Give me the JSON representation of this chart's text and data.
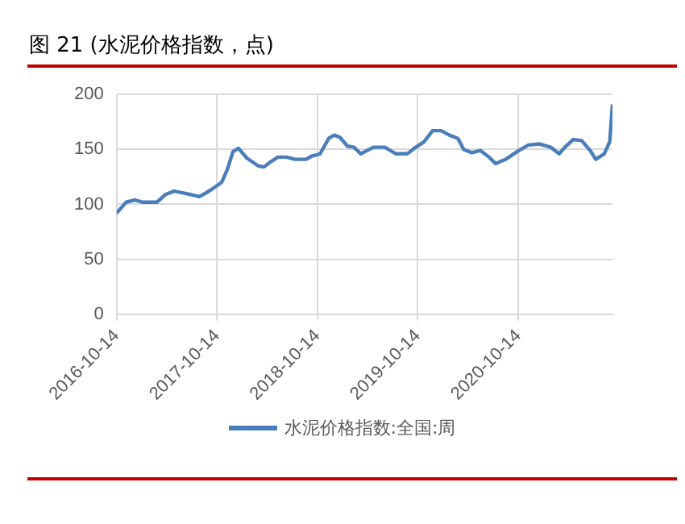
{
  "chart_data": {
    "type": "line",
    "title": "图 21 (水泥价格指数，点)",
    "legend": "bottom",
    "grid": true,
    "marker": "none",
    "line_style": "solid",
    "xlim": [
      "2016-10-14",
      "2021-09-21"
    ],
    "xticks": [
      "2016-10-14",
      "2017-10-14",
      "2018-10-14",
      "2019-10-14",
      "2020-10-14"
    ],
    "ylim": [
      0,
      200
    ],
    "yticks": [
      0,
      50,
      100,
      150,
      200
    ],
    "series": [
      {
        "name": "水泥价格指数:全国:周",
        "color": "#4a7ebb",
        "x": [
          "2016-10-14",
          "2016-11-18",
          "2016-12-19",
          "2017-01-18",
          "2017-03-10",
          "2017-04-10",
          "2017-05-11",
          "2017-06-21",
          "2017-08-11",
          "2017-09-21",
          "2017-10-31",
          "2017-11-21",
          "2017-12-11",
          "2017-12-31",
          "2018-01-31",
          "2018-03-13",
          "2018-04-03",
          "2018-04-23",
          "2018-05-24",
          "2018-06-24",
          "2018-07-24",
          "2018-09-03",
          "2018-09-24",
          "2018-10-24",
          "2018-11-24",
          "2018-12-14",
          "2019-01-04",
          "2019-01-31",
          "2019-02-24",
          "2019-03-21",
          "2019-05-06",
          "2019-06-16",
          "2019-07-27",
          "2019-09-06",
          "2019-10-07",
          "2019-11-06",
          "2019-12-07",
          "2020-01-07",
          "2020-02-06",
          "2020-03-08",
          "2020-03-29",
          "2020-04-28",
          "2020-05-29",
          "2020-06-29",
          "2020-07-23",
          "2020-08-29",
          "2020-10-09",
          "2020-11-19",
          "2020-12-30",
          "2021-02-08",
          "2021-03-11",
          "2021-04-01",
          "2021-05-01",
          "2021-06-01",
          "2021-07-02",
          "2021-07-22",
          "2021-08-22",
          "2021-09-11",
          "2021-09-21"
        ],
        "values": [
          92,
          102,
          104,
          102,
          102,
          109,
          112,
          110,
          107,
          113,
          120,
          132,
          148,
          151,
          142,
          135,
          134,
          138,
          143,
          143,
          141,
          141,
          144,
          146,
          160,
          163,
          161,
          153,
          152,
          146,
          152,
          152,
          146,
          146,
          152,
          157,
          167,
          167,
          163,
          160,
          150,
          147,
          149,
          143,
          137,
          141,
          148,
          154,
          155,
          152,
          146,
          152,
          159,
          158,
          149,
          141,
          146,
          157,
          191
        ]
      }
    ]
  }
}
